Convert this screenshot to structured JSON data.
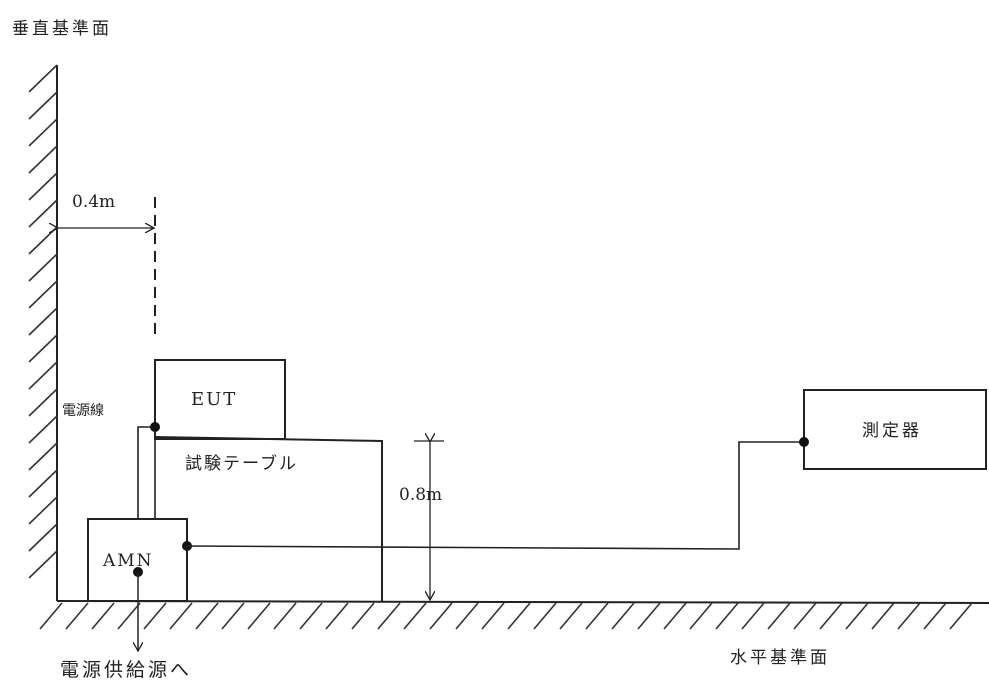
{
  "labels": {
    "vertical_plane": "垂直基準面",
    "horizontal_plane": "水平基準面",
    "distance_from_wall": "0.4m",
    "table_height": "0.8m",
    "eut": "EUT",
    "test_table": "試験テーブル",
    "power_cord": "電源線",
    "amn": "AMN",
    "to_power_supply": "電源供給源へ",
    "instrument": "測定器"
  }
}
